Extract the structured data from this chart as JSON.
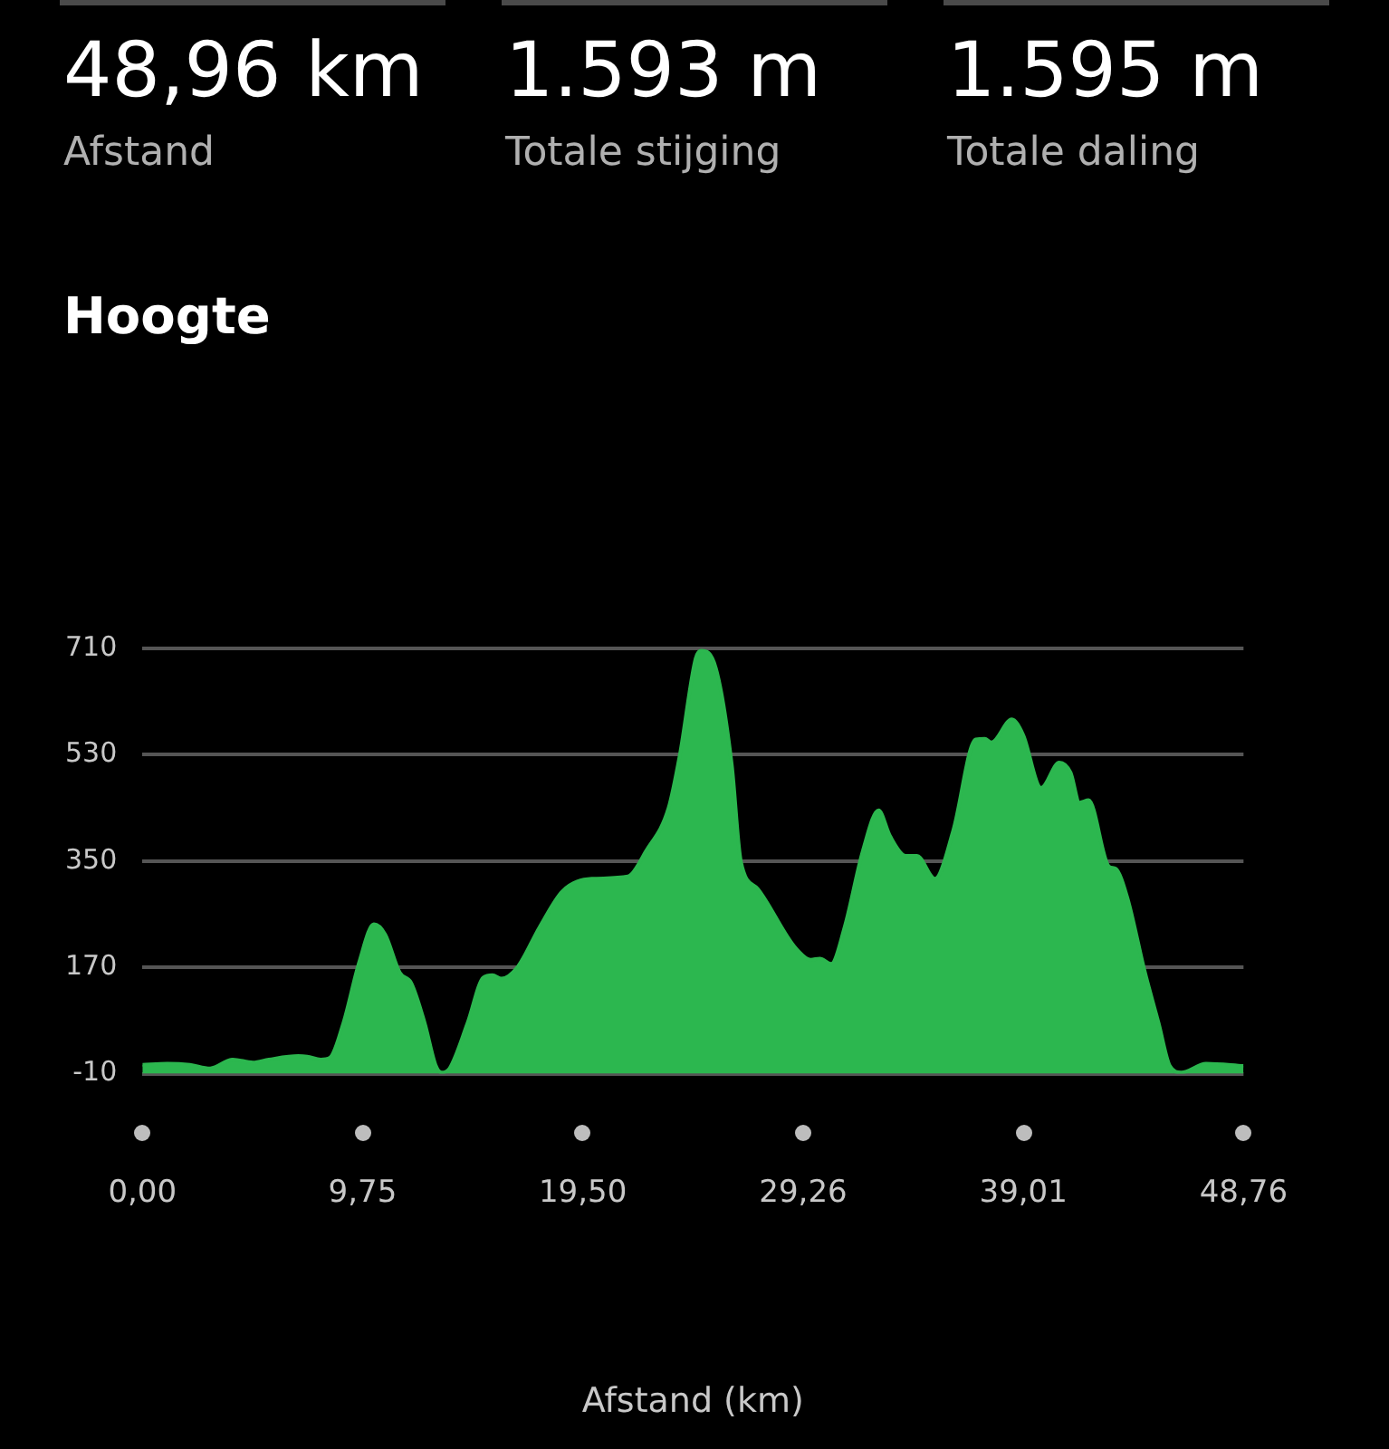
{
  "chart_data": {
    "type": "area",
    "title": "Hoogte",
    "xlabel": "Afstand (km)",
    "annotations": [
      "48,96 km",
      "Afstand",
      "1.593 m",
      "Totale stijging",
      "1.595 m",
      "Totale daling"
    ],
    "x": [
      0,
      1.1,
      2.1,
      3.0,
      4.0,
      4.9,
      5.6,
      6.9,
      7.3,
      7.9,
      8.3,
      8.9,
      9.6,
      10.25,
      10.75,
      11.4,
      11.9,
      12.5,
      13.0,
      13.25,
      13.6,
      14.4,
      15.1,
      15.5,
      15.9,
      16.6,
      17.6,
      18.6,
      19.9,
      21.5,
      22.3,
      23.3,
      23.8,
      24.5,
      24.75,
      25.4,
      26.1,
      26.5,
      27.25,
      28.9,
      29.6,
      30.0,
      30.5,
      31.1,
      31.9,
      32.6,
      33.1,
      33.8,
      34.3,
      35.1,
      35.9,
      36.9,
      37.3,
      37.6,
      38.5,
      39.0,
      39.8,
      40.6,
      41.1,
      41.5,
      41.9,
      42.8,
      43.1,
      43.6,
      44.4,
      45.0,
      45.5,
      46.0,
      47.1,
      48.76
    ],
    "series": [
      {
        "color": "#2cb74f",
        "values": [
          5,
          7,
          5,
          -1,
          14,
          9,
          14,
          20,
          19,
          14,
          17,
          76,
          179,
          243,
          226,
          161,
          144,
          76,
          3,
          -8,
          -1,
          76,
          153,
          157,
          151,
          170,
          239,
          299,
          320,
          324,
          367,
          440,
          530,
          693,
          706,
          676,
          513,
          350,
          303,
          204,
          183,
          185,
          176,
          239,
          367,
          436,
          393,
          359,
          359,
          320,
          401,
          556,
          557,
          551,
          590,
          564,
          474,
          517,
          500,
          449,
          453,
          341,
          337,
          290,
          161,
          76,
          3,
          -8,
          7,
          3
        ]
      }
    ],
    "xlim": [
      0,
      48.76
    ],
    "xticks": [
      {
        "value": 0,
        "label": "0,00"
      },
      {
        "value": 9.75,
        "label": "9,75"
      },
      {
        "value": 19.5,
        "label": "19,50"
      },
      {
        "value": 29.26,
        "label": "29,26"
      },
      {
        "value": 39.01,
        "label": "39,01"
      },
      {
        "value": 48.76,
        "label": "48,76"
      }
    ],
    "ylim": [
      -10,
      710
    ],
    "yticks": [
      -10,
      170,
      350,
      530,
      710
    ],
    "grid": "y",
    "legend": false,
    "marker": "none",
    "line_style": "solid"
  }
}
